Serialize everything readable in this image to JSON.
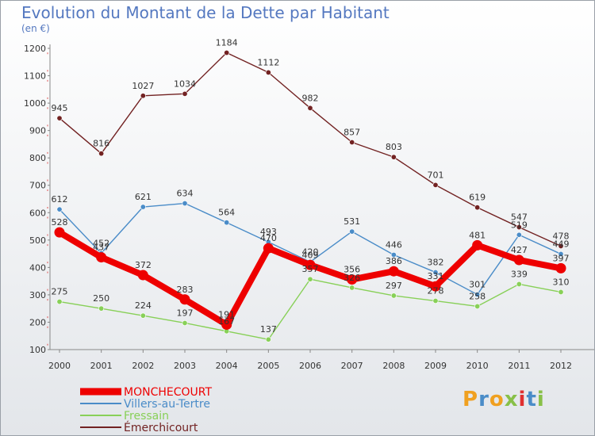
{
  "title": "Evolution du Montant de la Dette par Habitant",
  "unit": "(en €)",
  "logo_text": "Proxiti",
  "chart_data": {
    "type": "line",
    "title": "Evolution du Montant de la Dette par Habitant",
    "ylabel": "(en €)",
    "xlabel": "",
    "x": [
      "2000",
      "2001",
      "2002",
      "2003",
      "2004",
      "2005",
      "2006",
      "2007",
      "2008",
      "2009",
      "2010",
      "2011",
      "2012"
    ],
    "ylim": [
      100,
      1200
    ],
    "yticks": [
      100,
      200,
      300,
      400,
      500,
      600,
      700,
      800,
      900,
      1000,
      1100,
      1200
    ],
    "grid": false,
    "legend_position": "bottom",
    "series": [
      {
        "name": "MONCHECOURT",
        "color": "#ee0000",
        "values": [
          528,
          437,
          372,
          283,
          191,
          470,
          409,
          356,
          386,
          331,
          481,
          427,
          397
        ],
        "labels": [
          "528",
          "437",
          "372",
          "283",
          "191",
          "470",
          "409",
          "356",
          "386",
          "331",
          "481",
          "427",
          "397"
        ]
      },
      {
        "name": "Villers-au-Tertre",
        "color": "#4a8cc8",
        "values": [
          612,
          452,
          621,
          634,
          564,
          493,
          420,
          531,
          446,
          382,
          301,
          519,
          449
        ],
        "labels": [
          "612",
          "452",
          "621",
          "634",
          "564",
          "493",
          "420",
          "531",
          "446",
          "382",
          "301",
          "519",
          "449"
        ]
      },
      {
        "name": "Fressain",
        "color": "#88d058",
        "values": [
          275,
          250,
          224,
          197,
          167,
          137,
          357,
          326,
          297,
          278,
          258,
          339,
          310
        ],
        "labels": [
          "275",
          "250",
          "224",
          "197",
          "167",
          "137",
          "357",
          "326",
          "297",
          "278",
          "258",
          "339",
          "310"
        ]
      },
      {
        "name": "Émerchicourt",
        "color": "#722222",
        "values": [
          945,
          816,
          1027,
          1034,
          1184,
          1112,
          982,
          857,
          803,
          701,
          619,
          547,
          478
        ],
        "labels": [
          "945",
          "816",
          "1027",
          "1034",
          "1184",
          "1112",
          "982",
          "857",
          "803",
          "701",
          "619",
          "547",
          "478"
        ]
      }
    ]
  }
}
